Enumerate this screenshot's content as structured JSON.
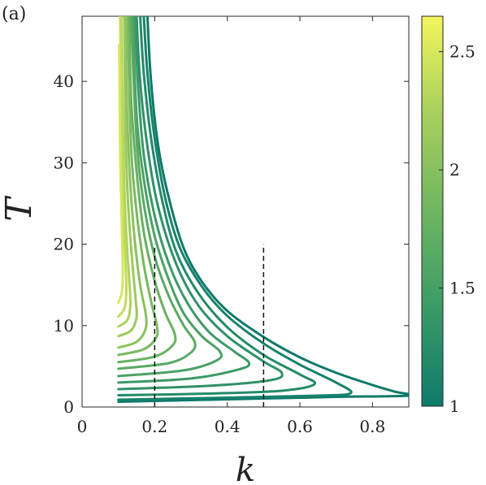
{
  "panel_label": "(a)",
  "chart_data": {
    "type": "line",
    "title": "",
    "xlabel": "k",
    "ylabel": "T",
    "xlim": [
      0,
      0.9
    ],
    "ylim": [
      0,
      48
    ],
    "x_ticks": [
      "0",
      "0.2",
      "0.4",
      "0.6",
      "0.8"
    ],
    "x_tick_values": [
      0,
      0.2,
      0.4,
      0.6,
      0.8
    ],
    "y_ticks": [
      "0",
      "10",
      "20",
      "30",
      "40"
    ],
    "y_tick_values": [
      0,
      10,
      20,
      30,
      40
    ],
    "grid": false,
    "legend": "none",
    "colorbar": {
      "range": [
        1,
        2.65
      ],
      "ticks": [
        "1",
        "1.5",
        "2",
        "2.5"
      ],
      "tick_values": [
        1,
        1.5,
        2,
        2.5
      ],
      "colormap": [
        "#0e7a6a",
        "#3a9a67",
        "#6eb660",
        "#a8cf5d",
        "#f3f65e"
      ]
    },
    "series": [
      {
        "level": 1.0,
        "color": "#0e7a6a",
        "points": [
          [
            0.1,
            0.65
          ],
          [
            0.3,
            0.85
          ],
          [
            0.5,
            1.05
          ],
          [
            0.7,
            1.25
          ],
          [
            0.9,
            1.4
          ],
          [
            0.86,
            1.9
          ],
          [
            0.8,
            2.7
          ],
          [
            0.7,
            4.2
          ],
          [
            0.6,
            6.1
          ],
          [
            0.5,
            8.6
          ],
          [
            0.4,
            11.8
          ],
          [
            0.33,
            15.4
          ],
          [
            0.28,
            19.5
          ],
          [
            0.24,
            25.5
          ],
          [
            0.21,
            32.0
          ],
          [
            0.19,
            40.0
          ],
          [
            0.18,
            48.0
          ]
        ]
      },
      {
        "level": 1.1,
        "color": "#18826a",
        "points": [
          [
            0.1,
            0.9
          ],
          [
            0.4,
            1.15
          ],
          [
            0.65,
            1.4
          ],
          [
            0.74,
            1.7
          ],
          [
            0.7,
            3.0
          ],
          [
            0.6,
            5.2
          ],
          [
            0.5,
            7.8
          ],
          [
            0.4,
            11.2
          ],
          [
            0.33,
            14.8
          ],
          [
            0.27,
            19.5
          ],
          [
            0.23,
            25.5
          ],
          [
            0.2,
            33.0
          ],
          [
            0.18,
            41.0
          ],
          [
            0.17,
            48.0
          ]
        ]
      },
      {
        "level": 1.21,
        "color": "#248a69",
        "points": [
          [
            0.1,
            1.45
          ],
          [
            0.35,
            1.65
          ],
          [
            0.55,
            2.0
          ],
          [
            0.64,
            2.8
          ],
          [
            0.6,
            4.0
          ],
          [
            0.5,
            6.4
          ],
          [
            0.4,
            9.8
          ],
          [
            0.32,
            14.0
          ],
          [
            0.26,
            19.0
          ],
          [
            0.22,
            25.5
          ],
          [
            0.19,
            33.0
          ],
          [
            0.17,
            41.0
          ],
          [
            0.16,
            48.0
          ]
        ]
      },
      {
        "level": 1.32,
        "color": "#309168",
        "points": [
          [
            0.1,
            2.2
          ],
          [
            0.35,
            2.6
          ],
          [
            0.52,
            3.3
          ],
          [
            0.55,
            4.2
          ],
          [
            0.5,
            5.6
          ],
          [
            0.4,
            8.7
          ],
          [
            0.32,
            12.5
          ],
          [
            0.26,
            17.5
          ],
          [
            0.21,
            24.5
          ],
          [
            0.18,
            32.0
          ],
          [
            0.16,
            40.0
          ],
          [
            0.15,
            48.0
          ]
        ]
      },
      {
        "level": 1.44,
        "color": "#3d9967",
        "points": [
          [
            0.1,
            3.0
          ],
          [
            0.3,
            3.5
          ],
          [
            0.43,
            4.6
          ],
          [
            0.46,
            5.4
          ],
          [
            0.42,
            6.8
          ],
          [
            0.35,
            9.2
          ],
          [
            0.29,
            12.8
          ],
          [
            0.24,
            17.5
          ],
          [
            0.2,
            23.5
          ],
          [
            0.17,
            31.0
          ],
          [
            0.155,
            39.0
          ],
          [
            0.145,
            48.0
          ]
        ]
      },
      {
        "level": 1.55,
        "color": "#4ba165",
        "points": [
          [
            0.1,
            3.8
          ],
          [
            0.28,
            4.5
          ],
          [
            0.37,
            5.7
          ],
          [
            0.38,
            6.8
          ],
          [
            0.33,
            8.7
          ],
          [
            0.28,
            11.5
          ],
          [
            0.24,
            15.5
          ],
          [
            0.2,
            21.0
          ],
          [
            0.17,
            28.0
          ],
          [
            0.15,
            36.0
          ],
          [
            0.14,
            48.0
          ]
        ]
      },
      {
        "level": 1.66,
        "color": "#59a964",
        "points": [
          [
            0.1,
            4.7
          ],
          [
            0.24,
            5.4
          ],
          [
            0.3,
            6.7
          ],
          [
            0.31,
            8.0
          ],
          [
            0.28,
            10.0
          ],
          [
            0.24,
            13.5
          ],
          [
            0.2,
            18.5
          ],
          [
            0.17,
            25.0
          ],
          [
            0.15,
            33.0
          ],
          [
            0.135,
            48.0
          ]
        ]
      },
      {
        "level": 1.77,
        "color": "#68b161",
        "points": [
          [
            0.1,
            5.5
          ],
          [
            0.2,
            6.2
          ],
          [
            0.25,
            7.6
          ],
          [
            0.255,
            9.0
          ],
          [
            0.23,
            11.5
          ],
          [
            0.2,
            15.5
          ],
          [
            0.17,
            21.5
          ],
          [
            0.15,
            29.0
          ],
          [
            0.135,
            38.0
          ],
          [
            0.13,
            48.0
          ]
        ]
      },
      {
        "level": 1.88,
        "color": "#79b960",
        "points": [
          [
            0.1,
            6.4
          ],
          [
            0.17,
            7.1
          ],
          [
            0.205,
            8.6
          ],
          [
            0.205,
            10.2
          ],
          [
            0.19,
            13.0
          ],
          [
            0.17,
            17.5
          ],
          [
            0.15,
            24.0
          ],
          [
            0.135,
            32.0
          ],
          [
            0.125,
            48.0
          ]
        ]
      },
      {
        "level": 1.99,
        "color": "#8ac15e",
        "points": [
          [
            0.1,
            7.3
          ],
          [
            0.15,
            8.0
          ],
          [
            0.175,
            9.6
          ],
          [
            0.175,
            11.5
          ],
          [
            0.16,
            15.0
          ],
          [
            0.145,
            20.5
          ],
          [
            0.132,
            28.0
          ],
          [
            0.123,
            38.0
          ],
          [
            0.12,
            48.0
          ]
        ]
      },
      {
        "level": 2.1,
        "color": "#9cc95d",
        "points": [
          [
            0.1,
            8.7
          ],
          [
            0.135,
            9.4
          ],
          [
            0.15,
            11.0
          ],
          [
            0.148,
            13.0
          ],
          [
            0.14,
            17.0
          ],
          [
            0.128,
            24.0
          ],
          [
            0.12,
            33.0
          ],
          [
            0.116,
            48.0
          ]
        ]
      },
      {
        "level": 2.21,
        "color": "#afd25c",
        "points": [
          [
            0.1,
            9.9
          ],
          [
            0.125,
            10.7
          ],
          [
            0.133,
            12.6
          ],
          [
            0.13,
            15.5
          ],
          [
            0.122,
            21.0
          ],
          [
            0.115,
            29.0
          ],
          [
            0.11,
            40.0
          ],
          [
            0.108,
            48.0
          ]
        ]
      },
      {
        "level": 2.32,
        "color": "#c2dc5d",
        "points": [
          [
            0.1,
            11.1
          ],
          [
            0.117,
            12.2
          ],
          [
            0.122,
            14.5
          ],
          [
            0.118,
            19.0
          ],
          [
            0.112,
            26.0
          ],
          [
            0.108,
            36.0
          ],
          [
            0.105,
            48.0
          ]
        ]
      },
      {
        "level": 2.43,
        "color": "#d6e75d",
        "points": [
          [
            0.1,
            12.8
          ],
          [
            0.11,
            14.2
          ],
          [
            0.112,
            17.0
          ],
          [
            0.109,
            23.0
          ],
          [
            0.105,
            31.0
          ],
          [
            0.103,
            41.0
          ],
          [
            0.102,
            44.5
          ]
        ]
      }
    ],
    "reference_lines": [
      {
        "style": "dashed",
        "x": 0.2,
        "y_range": [
          0,
          20
        ]
      },
      {
        "style": "dashed",
        "x": 0.5,
        "y_range": [
          0,
          20
        ]
      }
    ]
  }
}
